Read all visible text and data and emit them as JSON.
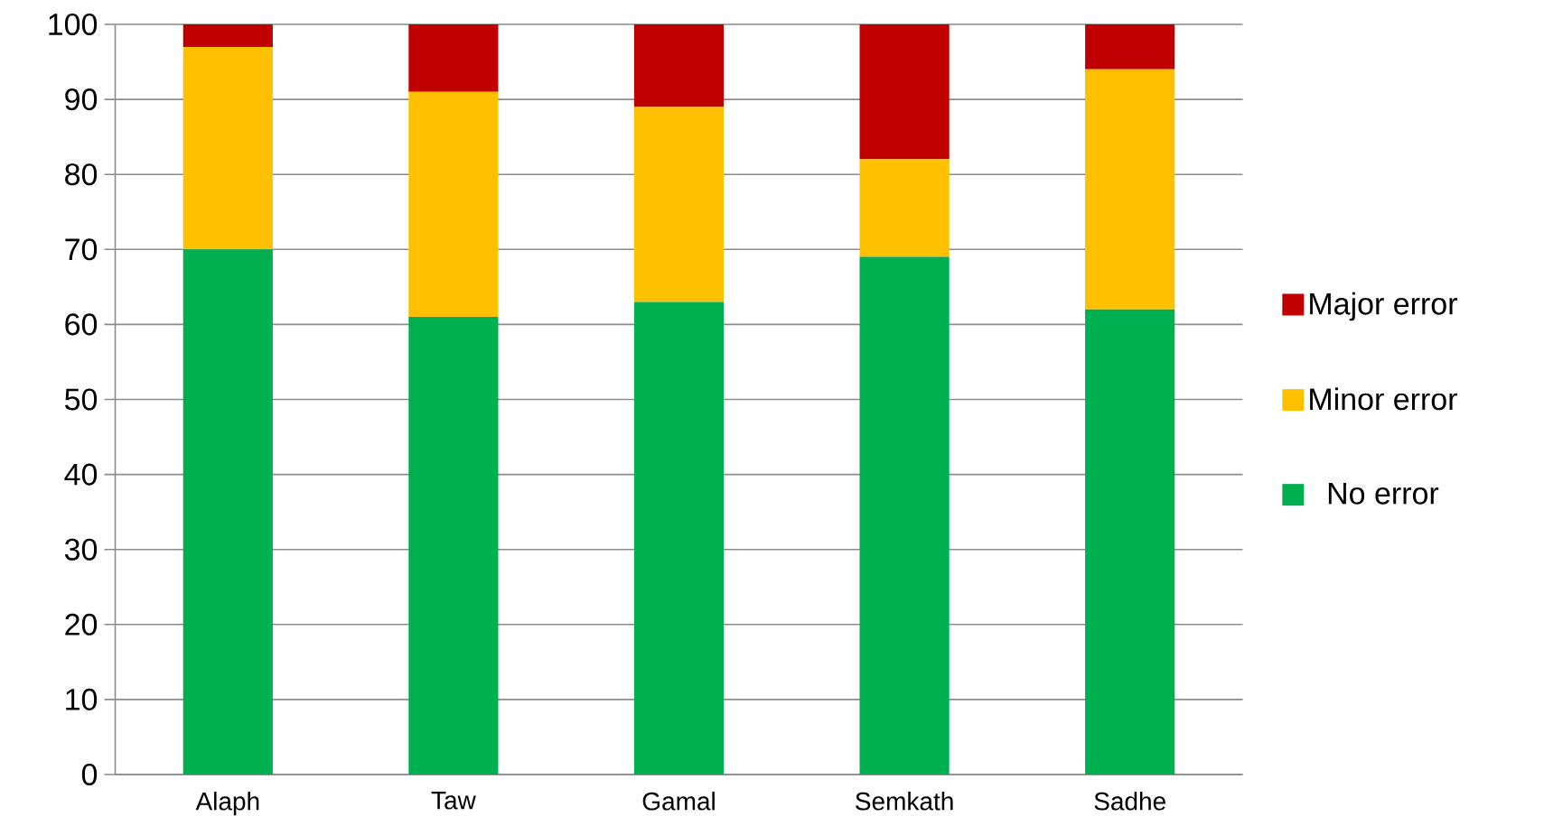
{
  "chart_data": {
    "type": "bar",
    "stacked": true,
    "categories": [
      "Alaph",
      "Taw",
      "Gamal",
      "Semkath",
      "Sadhe"
    ],
    "series": [
      {
        "name": "No error",
        "color": "#00b050",
        "values": [
          70,
          61,
          63,
          69,
          62
        ]
      },
      {
        "name": "Minor error",
        "color": "#ffc000",
        "values": [
          27,
          30,
          26,
          13,
          32
        ]
      },
      {
        "name": "Major error",
        "color": "#c00000",
        "values": [
          3,
          9,
          11,
          18,
          6
        ]
      }
    ],
    "ylim": [
      0,
      100
    ],
    "yticks": [
      0,
      10,
      20,
      30,
      40,
      50,
      60,
      70,
      80,
      90,
      100
    ],
    "grid": "y",
    "legend": "right"
  }
}
